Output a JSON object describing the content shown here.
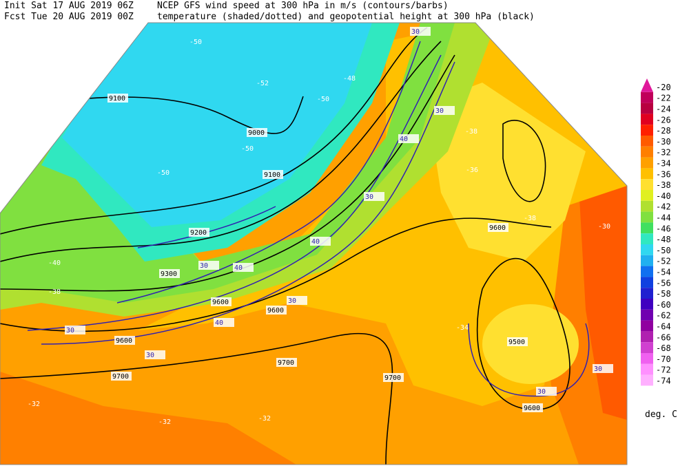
{
  "header": {
    "init": "Init  Sat 17 AUG 2019 06Z",
    "fcst": "Fcst Tue 20 AUG 2019 00Z",
    "line1": "NCEP GFS wind speed at 300 hPa in m/s (contours/barbs)",
    "line2": "temperature (shaded/dotted) and geopotential height at 300 hPa (black)"
  },
  "colorbar": {
    "unit": "deg. C",
    "levels": [
      {
        "value": -20,
        "color": "#e0189a"
      },
      {
        "value": -22,
        "color": "#c0005a"
      },
      {
        "value": -24,
        "color": "#b80040"
      },
      {
        "value": -26,
        "color": "#e00020"
      },
      {
        "value": -28,
        "color": "#ff2000"
      },
      {
        "value": -30,
        "color": "#ff5a00"
      },
      {
        "value": -32,
        "color": "#ff7f00"
      },
      {
        "value": -34,
        "color": "#ffa000"
      },
      {
        "value": -36,
        "color": "#ffc000"
      },
      {
        "value": -38,
        "color": "#ffe030"
      },
      {
        "value": -40,
        "color": "#e0f020"
      },
      {
        "value": -42,
        "color": "#b0e030"
      },
      {
        "value": -44,
        "color": "#80e040"
      },
      {
        "value": -46,
        "color": "#40e060"
      },
      {
        "value": -48,
        "color": "#30e8c0"
      },
      {
        "value": -50,
        "color": "#30d8f0"
      },
      {
        "value": -52,
        "color": "#20b0f0"
      },
      {
        "value": -54,
        "color": "#1070f0"
      },
      {
        "value": -56,
        "color": "#1040e0"
      },
      {
        "value": -58,
        "color": "#2020d0"
      },
      {
        "value": -60,
        "color": "#4000c0"
      },
      {
        "value": -62,
        "color": "#7000b0"
      },
      {
        "value": -64,
        "color": "#9000a0"
      },
      {
        "value": -66,
        "color": "#b020b0"
      },
      {
        "value": -68,
        "color": "#d040d0"
      },
      {
        "value": -70,
        "color": "#f060f0"
      },
      {
        "value": -72,
        "color": "#ff90ff"
      },
      {
        "value": -74,
        "color": "#ffb0ff"
      }
    ]
  },
  "height_labels": [
    "9000",
    "9100",
    "9100",
    "9200",
    "9300",
    "9500",
    "9600",
    "9600",
    "9600",
    "9600",
    "9700",
    "9700",
    "9700",
    "9600"
  ],
  "temperature_labels": [
    "-50",
    "-52",
    "-48",
    "-50",
    "-50",
    "-50",
    "-36",
    "-38",
    "-38",
    "-32",
    "-32",
    "-32",
    "-30",
    "-40",
    "-38",
    "-34"
  ],
  "wind_labels": [
    "30",
    "30",
    "40",
    "30",
    "40",
    "40",
    "30",
    "30",
    "40",
    "30",
    "30",
    "30",
    "30"
  ]
}
